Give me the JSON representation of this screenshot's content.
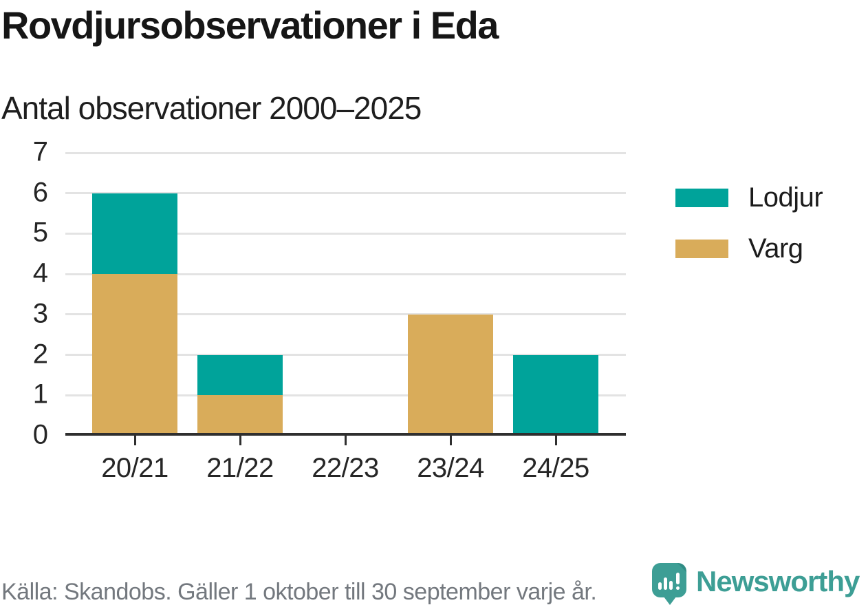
{
  "header": {
    "title": "Rovdjursobservationer i Eda",
    "subtitle": "Antal observationer 2000–2025"
  },
  "chart_data": {
    "type": "bar",
    "stacked": true,
    "title": "Rovdjursobservationer i Eda",
    "subtitle": "Antal observationer 2000–2025",
    "categories": [
      "20/21",
      "21/22",
      "22/23",
      "23/24",
      "24/25"
    ],
    "series": [
      {
        "name": "Lodjur",
        "color": "#00a39a",
        "values": [
          2,
          1,
          0,
          0,
          2
        ]
      },
      {
        "name": "Varg",
        "color": "#d9ac5a",
        "values": [
          4,
          1,
          0,
          3,
          0
        ]
      }
    ],
    "stack_order_bottom_to_top": [
      "Varg",
      "Lodjur"
    ],
    "xlabel": "",
    "ylabel": "",
    "ylim": [
      0,
      7
    ],
    "yticks": [
      0,
      1,
      2,
      3,
      4,
      5,
      6,
      7
    ],
    "grid": "horizontal",
    "legend_position": "right"
  },
  "legend": {
    "items": [
      {
        "label": "Lodjur",
        "color": "#00a39a"
      },
      {
        "label": "Varg",
        "color": "#d9ac5a"
      }
    ]
  },
  "footer": {
    "source": "Källa: Skandobs. Gäller 1 oktober till 30 september varje år.",
    "brand": "Newsworthy"
  },
  "colors": {
    "lodjur": "#00a39a",
    "varg": "#d9ac5a",
    "gridline": "#e3e3e3",
    "axis": "#2f2f2f",
    "brand_teal": "#3d9e95"
  }
}
